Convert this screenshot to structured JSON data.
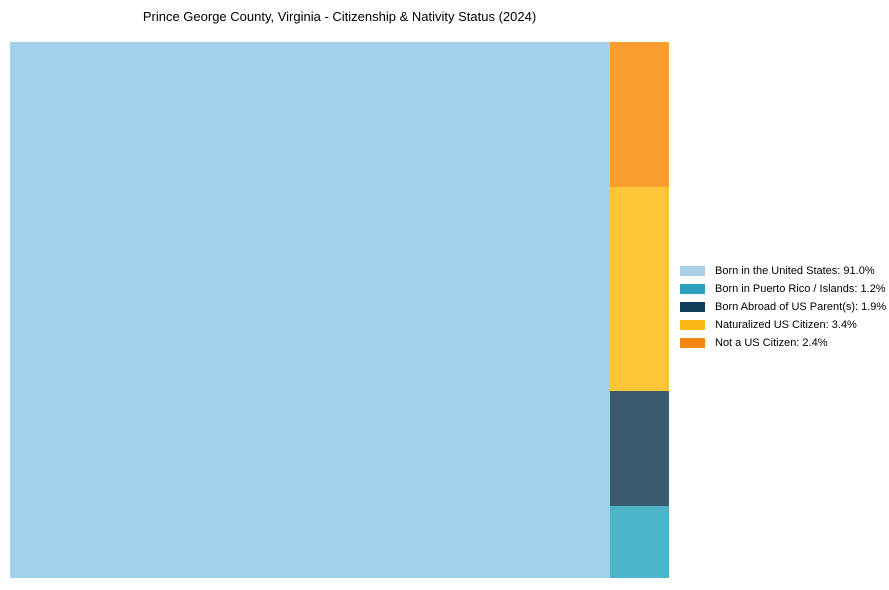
{
  "chart_data": {
    "type": "treemap",
    "title": "Prince George County, Virginia - Citizenship & Nativity Status (2024)",
    "unit": "%",
    "legend_position": "right",
    "background_color": "#ffffff",
    "segments": [
      {
        "label": "Born in the United States",
        "value": 91.0,
        "display": "Born in the United States: 91.0%",
        "color": "#a2d2ea",
        "legend_color": "#a8d1e7"
      },
      {
        "label": "Born in Puerto Rico / Islands",
        "value": 1.2,
        "display": "Born in Puerto Rico / Islands: 1.2%",
        "color": "#4db3c9",
        "legend_color": "#2c9fbc"
      },
      {
        "label": "Born Abroad of US Parent(s)",
        "value": 1.9,
        "display": "Born Abroad of US Parent(s): 1.9%",
        "color": "#3a5a70",
        "legend_color": "#0e3d59"
      },
      {
        "label": "Naturalized US Citizen",
        "value": 3.4,
        "display": "Naturalized US Citizen: 3.4%",
        "color": "#fec636",
        "legend_color": "#fdb813"
      },
      {
        "label": "Not a US Citizen",
        "value": 2.4,
        "display": "Not a US Citizen: 2.4%",
        "color": "#fa9e32",
        "legend_color": "#f58613"
      }
    ],
    "column_order_top_to_bottom": [
      "Not a US Citizen",
      "Naturalized US Citizen",
      "Born Abroad of US Parent(s)",
      "Born in Puerto Rico / Islands"
    ]
  }
}
